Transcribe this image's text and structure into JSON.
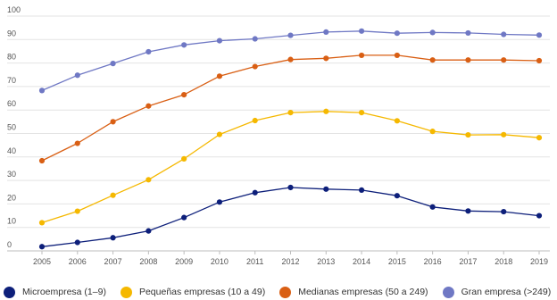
{
  "chart_data": {
    "type": "line",
    "title": "",
    "xlabel": "",
    "ylabel": "",
    "x": [
      "2005",
      "2006",
      "2007",
      "2008",
      "2009",
      "2010",
      "2011",
      "2012",
      "2013",
      "2014",
      "2015",
      "2016",
      "2017",
      "2018",
      "2019"
    ],
    "ylim": [
      0,
      100
    ],
    "yticks": [
      "0",
      "10",
      "20",
      "30",
      "40",
      "50",
      "60",
      "70",
      "80",
      "90",
      "100"
    ],
    "grid": true,
    "legend_position": "bottom",
    "series": [
      {
        "name": "Microempresa (1–9)",
        "color": "#0d1f7a",
        "values": [
          1.8,
          3.6,
          5.6,
          8.5,
          14.2,
          20.8,
          24.8,
          27.0,
          26.3,
          25.9,
          23.5,
          18.7,
          17.0,
          16.7,
          15.0
        ]
      },
      {
        "name": "Pequeñas empresas (10 a 49)",
        "color": "#f5b800",
        "values": [
          12.0,
          16.9,
          23.7,
          30.3,
          39.2,
          49.6,
          55.5,
          58.9,
          59.4,
          58.9,
          55.4,
          50.9,
          49.4,
          49.5,
          48.2
        ]
      },
      {
        "name": "Medianas empresas (50 a 249)",
        "color": "#d95f14",
        "values": [
          38.4,
          45.8,
          55.0,
          61.7,
          66.5,
          74.4,
          78.5,
          81.5,
          82.0,
          83.3,
          83.3,
          81.3,
          81.3,
          81.3,
          81.0
        ]
      },
      {
        "name": "Gran empresa (>249)",
        "color": "#6f78c4",
        "values": [
          68.3,
          74.8,
          79.8,
          84.8,
          87.7,
          89.5,
          90.3,
          91.8,
          93.2,
          93.6,
          92.7,
          93.0,
          92.8,
          92.2,
          91.9
        ]
      }
    ]
  }
}
